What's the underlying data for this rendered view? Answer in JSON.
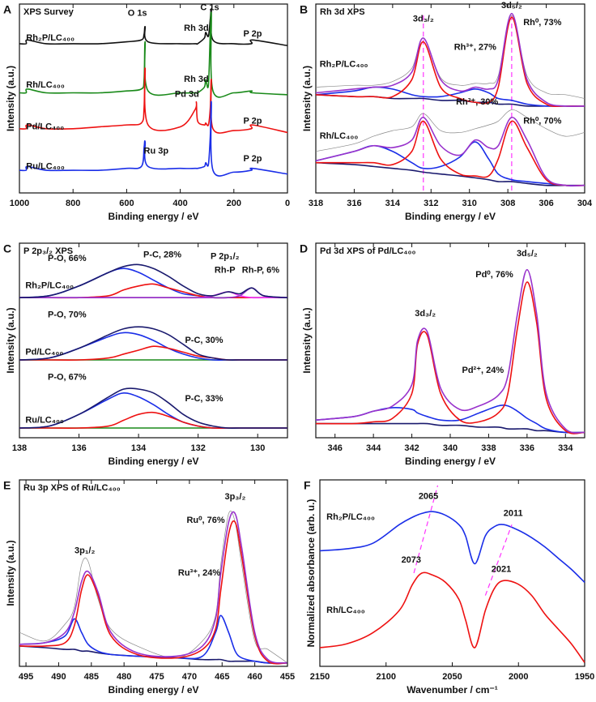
{
  "chart_data": [
    {
      "type": "line",
      "panel": "A",
      "title": "XPS Survey",
      "xlabel": "Binding energy / eV",
      "ylabel": "Intensity (a.u.)",
      "xlim": [
        1000,
        0
      ],
      "xticks": [
        1000,
        800,
        600,
        400,
        200,
        0
      ],
      "ylim": [
        0,
        100
      ],
      "x": [
        1000,
        975,
        970,
        900,
        800,
        700,
        600,
        545,
        535,
        531,
        520,
        400,
        345,
        340,
        335,
        310,
        305,
        295,
        288,
        284,
        278,
        200,
        135,
        130,
        0
      ],
      "series": [
        {
          "color": "#111111",
          "values": [
            79,
            79,
            81,
            79,
            79,
            79,
            80,
            81,
            84,
            88,
            80,
            79,
            79,
            79,
            79,
            82,
            85,
            83,
            92,
            97,
            81,
            79,
            79,
            81,
            78
          ]
        },
        {
          "color": "#1a8a1a",
          "values": [
            53,
            53,
            55,
            53,
            53,
            53,
            54,
            55,
            60,
            80,
            54,
            53,
            53,
            53,
            53,
            56,
            60,
            57,
            85,
            94,
            54,
            53,
            54,
            53,
            52
          ]
        },
        {
          "color": "#ee1111",
          "values": [
            34,
            34,
            36,
            34,
            34,
            35,
            36,
            37,
            45,
            66,
            36,
            35,
            44,
            48,
            38,
            36,
            37,
            36,
            45,
            60,
            34,
            33,
            34,
            36,
            32
          ]
        },
        {
          "color": "#1a2ee8",
          "values": [
            12,
            12,
            14,
            12,
            12,
            12,
            13,
            14,
            24,
            27,
            14,
            13,
            13,
            13,
            13,
            14,
            16,
            15,
            30,
            48,
            12,
            11,
            12,
            13,
            10
          ]
        }
      ],
      "annotations": [
        "O 1s",
        "C 1s",
        "Rh 3d",
        "P 2p",
        "Rh 3d",
        "Pd 3d",
        "P 2p",
        "Ru 3p",
        "P 2p",
        "Rh₂P/LC₄₀₀",
        "Rh/LC₄₀₀",
        "Pd/LC₄₀₀",
        "Ru/LC₄₀₀"
      ]
    },
    {
      "type": "line",
      "panel": "B",
      "title": "Rh 3d XPS",
      "xlabel": "Binding energy / eV",
      "ylabel": "Intensity (a.u.)",
      "xlim": [
        318,
        304
      ],
      "xticks": [
        318,
        316,
        314,
        312,
        310,
        308,
        306,
        304
      ],
      "ylim": [
        0,
        100
      ],
      "vlines": [
        312.4,
        307.8
      ],
      "x": [
        318,
        316,
        315,
        314,
        313,
        312.4,
        311.5,
        310.5,
        309.7,
        309,
        308.5,
        307.8,
        307,
        306,
        305,
        304
      ],
      "series": [
        {
          "color": "#888888",
          "values": [
            56,
            57,
            57,
            59,
            66,
            82,
            61,
            57,
            58,
            58,
            62,
            94,
            62,
            53,
            52,
            50
          ]
        },
        {
          "color": "#1a1a6e",
          "values": [
            52,
            51,
            51,
            50,
            50,
            50,
            49,
            49,
            48,
            48,
            47,
            47,
            46,
            46,
            46,
            46
          ]
        },
        {
          "color": "#1a2ee8",
          "values": [
            52,
            54,
            56,
            55,
            52,
            51,
            51,
            53,
            55,
            53,
            50,
            49,
            47,
            46,
            46,
            46
          ]
        },
        {
          "color": "#ee1111",
          "values": [
            52,
            51,
            51,
            51,
            60,
            80,
            56,
            50,
            48,
            48,
            56,
            93,
            58,
            47,
            46,
            46
          ]
        },
        {
          "color": "#9933cc",
          "values": [
            53,
            55,
            56,
            57,
            64,
            82,
            60,
            54,
            56,
            55,
            60,
            95,
            60,
            48,
            46,
            46
          ]
        },
        {
          "color": "#888888",
          "values": [
            22,
            26,
            30,
            33,
            35,
            42,
            33,
            32,
            34,
            36,
            38,
            44,
            40,
            34,
            30,
            32
          ]
        },
        {
          "color": "#1a1a6e",
          "values": [
            16,
            15,
            14,
            13,
            12,
            11,
            10,
            9,
            8,
            7,
            6,
            6,
            5,
            4,
            4,
            4
          ]
        },
        {
          "color": "#1a2ee8",
          "values": [
            17,
            22,
            25,
            22,
            16,
            13,
            14,
            19,
            27,
            18,
            10,
            7,
            6,
            5,
            4,
            4
          ]
        },
        {
          "color": "#ee1111",
          "values": [
            16,
            16,
            16,
            15,
            22,
            38,
            18,
            10,
            9,
            9,
            18,
            38,
            24,
            7,
            4,
            4
          ]
        },
        {
          "color": "#9933cc",
          "values": [
            17,
            22,
            25,
            24,
            28,
            40,
            25,
            20,
            28,
            24,
            25,
            40,
            28,
            8,
            4,
            4
          ]
        }
      ],
      "annotations": [
        "3d₃/₂",
        "3d₅/₂",
        "Rh³⁺, 27%",
        "Rh⁰, 73%",
        "Rh³⁺, 30%",
        "Rh⁰, 70%",
        "Rh₂P/LC₄₀₀",
        "Rh/LC₄₀₀"
      ]
    },
    {
      "type": "line",
      "panel": "C",
      "title": "P 2p₃/₂ XPS",
      "xlabel": "Binding energy / eV",
      "ylabel": "Intensity (a.u.)",
      "xlim": [
        138,
        129
      ],
      "xticks": [
        138,
        136,
        134,
        132,
        130
      ],
      "ylim": [
        0,
        100
      ],
      "x": [
        138,
        137,
        136,
        135,
        134.5,
        134,
        133.5,
        133,
        132.5,
        132,
        131.5,
        131,
        130.6,
        130.2,
        129.8,
        129
      ],
      "series": [
        {
          "color": "#1a8a1a",
          "values": [
            72,
            72,
            72,
            72,
            72,
            72,
            72,
            72,
            72,
            72,
            72,
            72,
            72,
            72,
            72,
            72
          ]
        },
        {
          "color": "#1a2ee8",
          "values": [
            72,
            73,
            78,
            85,
            87,
            85,
            81,
            77,
            74,
            73,
            72,
            72,
            72,
            72,
            72,
            72
          ]
        },
        {
          "color": "#ee1111",
          "values": [
            72,
            72,
            72,
            73,
            76,
            78,
            79,
            77,
            75,
            73,
            72,
            72,
            72,
            72,
            72,
            72
          ]
        },
        {
          "color": "#ff33ff",
          "values": [
            72,
            72,
            72,
            72,
            72,
            72,
            72,
            72,
            72,
            72,
            73,
            75,
            73,
            72,
            72,
            72
          ]
        },
        {
          "color": "#9933cc",
          "values": [
            72,
            72,
            72,
            72,
            72,
            72,
            72,
            72,
            72,
            72,
            72,
            72,
            73,
            77,
            73,
            72
          ]
        },
        {
          "color": "#1a1a6e",
          "values": [
            72,
            73,
            78,
            85,
            88,
            89,
            87,
            83,
            78,
            74,
            73,
            75,
            74,
            77,
            73,
            72
          ]
        },
        {
          "color": "#1a8a1a",
          "values": [
            40,
            40,
            40,
            40,
            40,
            40,
            40,
            40,
            40,
            40,
            40,
            40,
            40,
            40,
            40,
            40
          ]
        },
        {
          "color": "#1a2ee8",
          "values": [
            40,
            41,
            46,
            52,
            54,
            53,
            50,
            46,
            43,
            41,
            40,
            40,
            40,
            40,
            40,
            40
          ]
        },
        {
          "color": "#ee1111",
          "values": [
            40,
            40,
            40,
            41,
            43,
            45,
            47,
            46,
            44,
            42,
            41,
            40,
            40,
            40,
            40,
            40
          ]
        },
        {
          "color": "#1a1a6e",
          "values": [
            40,
            41,
            46,
            53,
            56,
            57,
            56,
            53,
            48,
            43,
            41,
            40,
            40,
            40,
            40,
            40
          ]
        },
        {
          "color": "#1a8a1a",
          "values": [
            5,
            5,
            5,
            5,
            5,
            5,
            5,
            5,
            5,
            5,
            5,
            5,
            5,
            5,
            5,
            5
          ]
        },
        {
          "color": "#1a2ee8",
          "values": [
            5,
            6,
            12,
            20,
            23,
            21,
            17,
            12,
            8,
            6,
            5,
            5,
            5,
            5,
            5,
            5
          ]
        },
        {
          "color": "#ee1111",
          "values": [
            5,
            5,
            5,
            6,
            9,
            12,
            13,
            11,
            8,
            6,
            5,
            5,
            5,
            5,
            5,
            5
          ]
        },
        {
          "color": "#1a1a6e",
          "values": [
            5,
            6,
            12,
            21,
            25,
            25,
            23,
            18,
            12,
            8,
            6,
            5,
            5,
            5,
            5,
            5
          ]
        }
      ],
      "annotations": [
        "P-O, 66%",
        "P-C, 28%",
        "P 2p₁/₂",
        "Rh-P",
        "Rh-P, 6%",
        "Rh₂P/LC₄₀₀",
        "P-O, 70%",
        "P-C, 30%",
        "Pd/LC₄₀₀",
        "P-O, 67%",
        "P-C, 33%",
        "Ru/LC₄₀₀"
      ]
    },
    {
      "type": "line",
      "panel": "D",
      "title": "Pd 3d XPS of Pd/LC₄₀₀",
      "xlabel": "Binding energy / eV",
      "ylabel": "Intensity (a.u.)",
      "xlim": [
        347,
        333
      ],
      "xticks": [
        346,
        344,
        342,
        340,
        338,
        336,
        334
      ],
      "ylim": [
        0,
        110
      ],
      "x": [
        347,
        345,
        344,
        343,
        342,
        341.7,
        341.2,
        340.5,
        339.5,
        338.5,
        337.5,
        337,
        336.5,
        336,
        335.5,
        335,
        334,
        333
      ],
      "series": [
        {
          "color": "#1a1a6e",
          "values": [
            8,
            8,
            8,
            8,
            8,
            8,
            8,
            7,
            7,
            6,
            6,
            5,
            5,
            5,
            4,
            4,
            3,
            3
          ]
        },
        {
          "color": "#1a2ee8",
          "values": [
            10,
            12,
            15,
            17,
            16,
            14,
            12,
            10,
            10,
            14,
            18,
            18,
            15,
            11,
            8,
            5,
            3,
            3
          ]
        },
        {
          "color": "#ee1111",
          "values": [
            8,
            8,
            9,
            11,
            25,
            53,
            58,
            25,
            10,
            9,
            14,
            25,
            62,
            88,
            65,
            22,
            4,
            3
          ]
        },
        {
          "color": "#9933cc",
          "values": [
            10,
            12,
            15,
            18,
            30,
            55,
            60,
            28,
            16,
            18,
            24,
            35,
            70,
            95,
            70,
            25,
            5,
            3
          ]
        }
      ],
      "annotations": [
        "3d₃/₂",
        "3d₅/₂",
        "Pd⁰, 76%",
        "Pd²⁺, 24%"
      ]
    },
    {
      "type": "line",
      "panel": "E",
      "title": "Ru 3p XPS of Ru/LC₄₀₀",
      "xlabel": "Binding energy / eV",
      "ylabel": "Intensity (a.u.)",
      "xlim": [
        496,
        455
      ],
      "xticks": [
        495,
        490,
        485,
        480,
        475,
        470,
        465,
        460,
        455
      ],
      "ylim": [
        0,
        110
      ],
      "x": [
        496,
        492,
        489,
        487.6,
        486.5,
        485.5,
        484,
        482,
        478,
        472,
        468,
        466,
        465.2,
        464,
        463,
        462,
        460,
        458,
        455
      ],
      "series": [
        {
          "color": "#888888",
          "values": [
            20,
            15,
            25,
            35,
            60,
            62,
            40,
            22,
            12,
            5,
            15,
            30,
            60,
            90,
            85,
            60,
            15,
            10,
            2
          ]
        },
        {
          "color": "#1a1a6e",
          "values": [
            12,
            11,
            10,
            10,
            9,
            9,
            8,
            7,
            6,
            5,
            4,
            4,
            4,
            3,
            3,
            3,
            3,
            2,
            2
          ]
        },
        {
          "color": "#1a2ee8",
          "values": [
            13,
            14,
            18,
            28,
            20,
            13,
            9,
            7,
            6,
            5,
            6,
            20,
            30,
            20,
            9,
            5,
            3,
            2,
            2
          ]
        },
        {
          "color": "#ee1111",
          "values": [
            12,
            12,
            14,
            24,
            45,
            54,
            42,
            18,
            7,
            5,
            10,
            22,
            45,
            78,
            85,
            65,
            18,
            3,
            2
          ]
        },
        {
          "color": "#9933cc",
          "values": [
            13,
            14,
            20,
            32,
            50,
            56,
            44,
            20,
            8,
            6,
            12,
            28,
            55,
            85,
            90,
            70,
            20,
            4,
            2
          ]
        }
      ],
      "annotations": [
        "3p₁/₂",
        "3p₃/₂",
        "Ru⁰, 76%",
        "Ru³⁺, 24%"
      ]
    },
    {
      "type": "line",
      "panel": "F",
      "xlabel": "Wavenumber / cm⁻¹",
      "ylabel": "Normalized absorbance (arb. u.)",
      "xlim": [
        2150,
        1950
      ],
      "xticks": [
        2150,
        2100,
        2050,
        2000,
        1950
      ],
      "ylim": [
        0,
        100
      ],
      "x": [
        2150,
        2130,
        2110,
        2090,
        2080,
        2073,
        2065,
        2055,
        2045,
        2040,
        2033,
        2025,
        2018,
        2011,
        2000,
        1990,
        1980,
        1970,
        1960,
        1950
      ],
      "series": [
        {
          "color": "#1a2ee8",
          "values": [
            62,
            63,
            66,
            76,
            80,
            82,
            83,
            81,
            76,
            70,
            55,
            70,
            75,
            76,
            73,
            69,
            64,
            58,
            52,
            45
          ]
        },
        {
          "color": "#ee1111",
          "values": [
            10,
            12,
            18,
            30,
            44,
            50,
            49,
            45,
            36,
            25,
            10,
            30,
            42,
            46,
            44,
            38,
            28,
            20,
            12,
            2
          ]
        }
      ],
      "annotations": [
        "2065",
        "2011",
        "2073",
        "2021",
        "Rh₂P/LC₄₀₀",
        "Rh/LC₄₀₀"
      ]
    }
  ]
}
